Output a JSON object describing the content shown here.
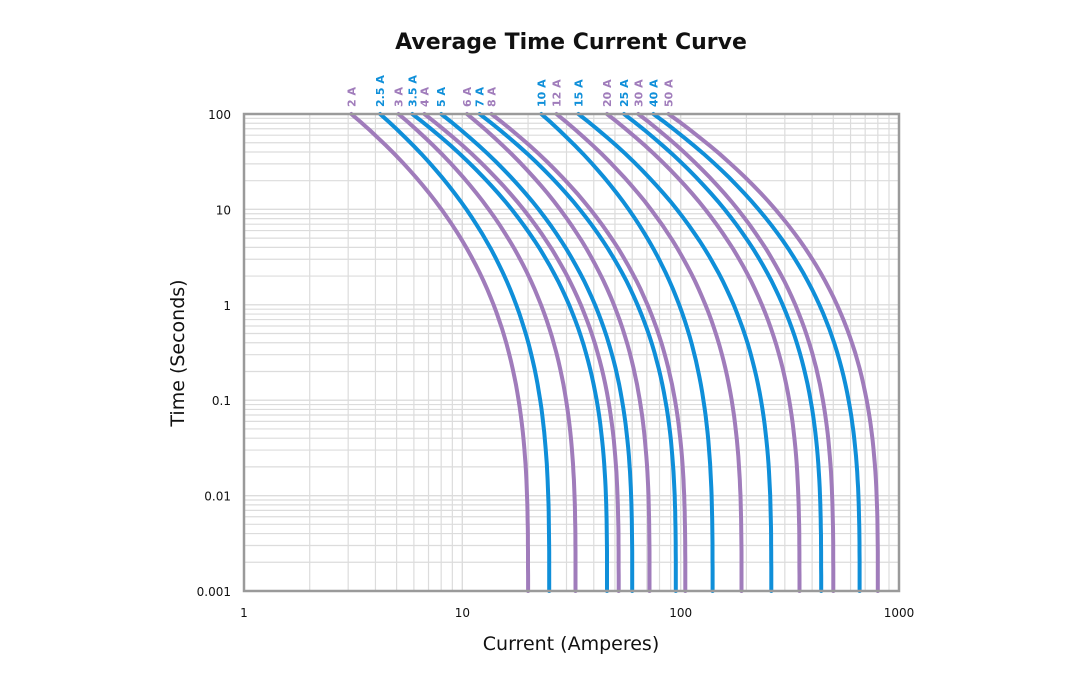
{
  "chart_data": {
    "type": "line",
    "title": "Average Time Current Curve",
    "xlabel": "Current (Amperes)",
    "ylabel": "Time (Seconds)",
    "xscale": "log",
    "yscale": "log",
    "xlim": [
      1,
      1000
    ],
    "ylim": [
      0.001,
      100
    ],
    "xticks": [
      "1",
      "10",
      "100",
      "1000"
    ],
    "yticks": [
      "100",
      "10",
      "1",
      "0.1",
      "0.01",
      "0.001"
    ],
    "grid": true,
    "colors": {
      "purple": "#a07cbb",
      "blue": "#0f8fd9",
      "grid": "#dcdcdc",
      "frame": "#9a9a9a"
    },
    "series": [
      {
        "name": "2 A",
        "color": "purple",
        "x_at_100s": 3.1,
        "x_at_0_001s": 20
      },
      {
        "name": "2.5 A",
        "color": "blue",
        "x_at_100s": 4.2,
        "x_at_0_001s": 25
      },
      {
        "name": "3 A",
        "color": "purple",
        "x_at_100s": 5.1,
        "x_at_0_001s": 33
      },
      {
        "name": "3.5 A",
        "color": "blue",
        "x_at_100s": 5.9,
        "x_at_0_001s": 46
      },
      {
        "name": "4 A",
        "color": "purple",
        "x_at_100s": 6.7,
        "x_at_0_001s": 52
      },
      {
        "name": "5 A",
        "color": "blue",
        "x_at_100s": 8.0,
        "x_at_0_001s": 60
      },
      {
        "name": "6 A",
        "color": "purple",
        "x_at_100s": 10.5,
        "x_at_0_001s": 72
      },
      {
        "name": "7 A",
        "color": "blue",
        "x_at_100s": 12.0,
        "x_at_0_001s": 95
      },
      {
        "name": "8 A",
        "color": "purple",
        "x_at_100s": 13.6,
        "x_at_0_001s": 105
      },
      {
        "name": "10 A",
        "color": "blue",
        "x_at_100s": 23,
        "x_at_0_001s": 140
      },
      {
        "name": "12 A",
        "color": "purple",
        "x_at_100s": 27,
        "x_at_0_001s": 190
      },
      {
        "name": "15 A",
        "color": "blue",
        "x_at_100s": 34,
        "x_at_0_001s": 260
      },
      {
        "name": "20 A",
        "color": "purple",
        "x_at_100s": 46,
        "x_at_0_001s": 350
      },
      {
        "name": "25 A",
        "color": "blue",
        "x_at_100s": 55,
        "x_at_0_001s": 440
      },
      {
        "name": "30 A",
        "color": "purple",
        "x_at_100s": 64,
        "x_at_0_001s": 500
      },
      {
        "name": "40 A",
        "color": "blue",
        "x_at_100s": 75,
        "x_at_0_001s": 660
      },
      {
        "name": "50 A",
        "color": "purple",
        "x_at_100s": 88,
        "x_at_0_001s": 800
      }
    ]
  }
}
